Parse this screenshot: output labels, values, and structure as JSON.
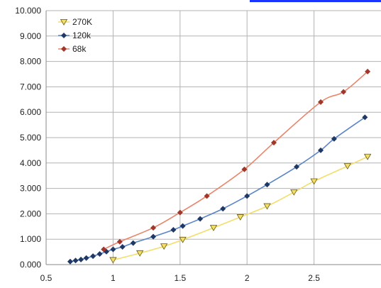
{
  "chart_data": {
    "type": "line",
    "title": "",
    "xlabel": "",
    "ylabel": "",
    "xlim": [
      0.5,
      2.9
    ],
    "ylim": [
      0,
      10
    ],
    "x_ticks": [
      0.5,
      1,
      1.5,
      2,
      2.5
    ],
    "x_tick_labels": [
      "0.5",
      "1",
      "1.5",
      "2",
      "2.5"
    ],
    "y_ticks": [
      0,
      1,
      2,
      3,
      4,
      5,
      6,
      7,
      8,
      9,
      10
    ],
    "y_tick_labels": [
      "0.000",
      "1.000",
      "2.000",
      "3.000",
      "4.000",
      "5.000",
      "6.000",
      "7.000",
      "8.000",
      "9.000",
      "10.000"
    ],
    "grid": true,
    "legend_position": "top-left",
    "series": [
      {
        "name": "270K",
        "color": "#f2de6a",
        "marker": "triangle-down",
        "points": [
          [
            1.0,
            0.18
          ],
          [
            1.2,
            0.45
          ],
          [
            1.38,
            0.72
          ],
          [
            1.52,
            0.98
          ],
          [
            1.75,
            1.45
          ],
          [
            1.95,
            1.87
          ],
          [
            2.15,
            2.3
          ],
          [
            2.35,
            2.85
          ],
          [
            2.5,
            3.28
          ],
          [
            2.75,
            3.88
          ],
          [
            2.9,
            4.25
          ]
        ]
      },
      {
        "name": "120k",
        "color": "#5a85c8",
        "marker": "diamond",
        "points": [
          [
            0.68,
            0.12
          ],
          [
            0.72,
            0.16
          ],
          [
            0.76,
            0.2
          ],
          [
            0.8,
            0.26
          ],
          [
            0.85,
            0.33
          ],
          [
            0.9,
            0.42
          ],
          [
            0.95,
            0.51
          ],
          [
            1.0,
            0.6
          ],
          [
            1.07,
            0.7
          ],
          [
            1.15,
            0.85
          ],
          [
            1.3,
            1.1
          ],
          [
            1.45,
            1.37
          ],
          [
            1.52,
            1.52
          ],
          [
            1.65,
            1.8
          ],
          [
            1.82,
            2.2
          ],
          [
            2.0,
            2.7
          ],
          [
            2.15,
            3.15
          ],
          [
            2.37,
            3.85
          ],
          [
            2.55,
            4.5
          ],
          [
            2.65,
            4.95
          ],
          [
            2.88,
            5.8
          ]
        ]
      },
      {
        "name": "68k",
        "color": "#e8856a",
        "marker": "diamond",
        "points": [
          [
            0.93,
            0.6
          ],
          [
            1.05,
            0.9
          ],
          [
            1.3,
            1.45
          ],
          [
            1.5,
            2.05
          ],
          [
            1.7,
            2.7
          ],
          [
            1.98,
            3.75
          ],
          [
            2.2,
            4.8
          ],
          [
            2.55,
            6.4
          ],
          [
            2.72,
            6.8
          ],
          [
            2.9,
            7.6
          ]
        ]
      }
    ]
  }
}
